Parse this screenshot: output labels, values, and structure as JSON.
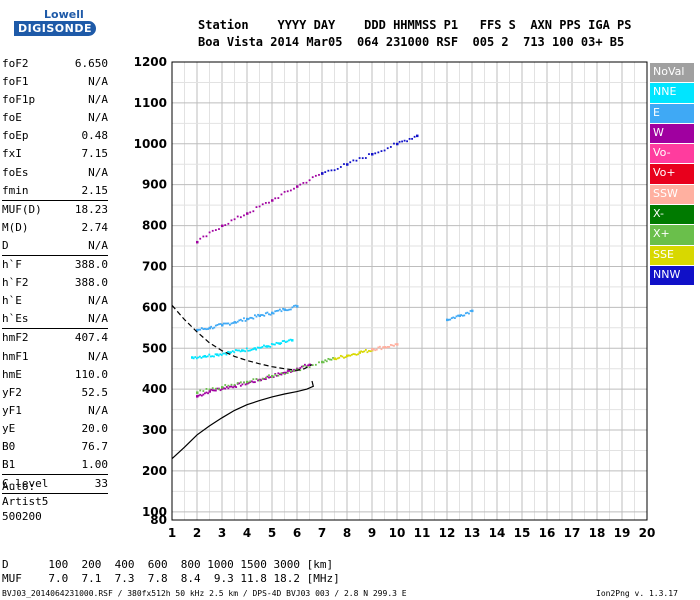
{
  "logo": {
    "top": "Lowell",
    "bottom": "DIGISONDE"
  },
  "header": {
    "labels": "Station    YYYY DAY    DDD HHMMSS P1   FFS S  AXN PPS IGA PS",
    "values": "Boa Vista 2014 Mar05  064 231000 RSF  005 2  713 100 03+ B5"
  },
  "params": {
    "group1": [
      {
        "name": "foF2",
        "value": "6.650"
      },
      {
        "name": "foF1",
        "value": "N/A"
      },
      {
        "name": "foF1p",
        "value": "N/A"
      },
      {
        "name": "foE",
        "value": "N/A"
      },
      {
        "name": "foEp",
        "value": "0.48"
      },
      {
        "name": "fxI",
        "value": "7.15"
      },
      {
        "name": "foEs",
        "value": "N/A"
      },
      {
        "name": "fmin",
        "value": "2.15"
      }
    ],
    "group2": [
      {
        "name": "MUF(D)",
        "value": "18.23"
      },
      {
        "name": "M(D)",
        "value": "2.74"
      },
      {
        "name": "D",
        "value": "N/A"
      }
    ],
    "group3": [
      {
        "name": "h`F",
        "value": "388.0"
      },
      {
        "name": "h`F2",
        "value": "388.0"
      },
      {
        "name": "h`E",
        "value": "N/A"
      },
      {
        "name": "h`Es",
        "value": "N/A"
      }
    ],
    "group4": [
      {
        "name": "hmF2",
        "value": "407.4"
      },
      {
        "name": "hmF1",
        "value": "N/A"
      },
      {
        "name": "hmE",
        "value": "110.0"
      },
      {
        "name": "yF2",
        "value": "52.5"
      },
      {
        "name": "yF1",
        "value": "N/A"
      },
      {
        "name": "yE",
        "value": "20.0"
      },
      {
        "name": "B0",
        "value": "76.7"
      },
      {
        "name": "B1",
        "value": "1.00"
      }
    ],
    "group5": [
      {
        "name": "C-level",
        "value": "33"
      }
    ]
  },
  "auto": [
    "Auto:",
    "Artist5",
    "500200"
  ],
  "legend": [
    {
      "label": "NoVal",
      "bg": "#a0a0a0",
      "fg": "#ffffff"
    },
    {
      "label": "NNE",
      "bg": "#00e5ff",
      "fg": "#ffffff"
    },
    {
      "label": "E",
      "bg": "#3fa9f5",
      "fg": "#ffffff"
    },
    {
      "label": "W",
      "bg": "#a000a0",
      "fg": "#ffffff"
    },
    {
      "label": "Vo-",
      "bg": "#ff3c9e",
      "fg": "#ffffff"
    },
    {
      "label": "Vo+",
      "bg": "#e8001c",
      "fg": "#ffffff"
    },
    {
      "label": "SSW",
      "bg": "#ffb0a0",
      "fg": "#ffffff"
    },
    {
      "label": "X-",
      "bg": "#007a00",
      "fg": "#ffffff"
    },
    {
      "label": "X+",
      "bg": "#6abf4b",
      "fg": "#ffffff"
    },
    {
      "label": "SSE",
      "bg": "#d8d800",
      "fg": "#ffffff"
    },
    {
      "label": "NNW",
      "bg": "#1010c8",
      "fg": "#ffffff"
    }
  ],
  "footer": {
    "row1": "D      100  200  400  600  800 1000 1500 3000 [km]",
    "row2": "MUF    7.0  7.1  7.3  7.8  8.4  9.3 11.8 18.2 [MHz]",
    "row3": "BVJ03_2014064231000.RSF / 380fx512h 50 kHz 2.5 km / DPS-4D BVJ03 003 / 2.8 N 299.3 E",
    "version": "Ion2Png v. 1.3.17"
  },
  "chart_data": {
    "type": "scatter",
    "x_ticks": [
      1,
      2,
      3,
      4,
      5,
      6,
      7,
      8,
      9,
      10,
      11,
      12,
      13,
      14,
      15,
      16,
      17,
      18,
      19,
      20
    ],
    "y_ticks": [
      80,
      100,
      200,
      300,
      400,
      500,
      600,
      700,
      800,
      900,
      1000,
      1100,
      1200
    ],
    "xlim": [
      1,
      20
    ],
    "ylim": [
      80,
      1200
    ],
    "grid": true,
    "legend_position": "right",
    "series": [
      {
        "name": "W",
        "color": "#a000a0",
        "x": [
          2.0,
          2.5,
          3.0,
          3.5,
          4.0,
          4.5,
          5.0,
          5.5,
          6.0,
          6.5
        ],
        "y": [
          383,
          395,
          402,
          408,
          415,
          423,
          432,
          440,
          450,
          460
        ]
      },
      {
        "name": "E",
        "color": "#3fa9f5",
        "x": [
          2.0,
          2.5,
          3.0,
          3.5,
          4.0,
          4.5,
          5.0,
          5.5,
          6.0
        ],
        "y": [
          545,
          550,
          557,
          564,
          572,
          580,
          587,
          595,
          603
        ]
      },
      {
        "name": "NNE",
        "color": "#00e5ff",
        "x": [
          1.8,
          2.3,
          2.8,
          3.3,
          3.8,
          4.3,
          4.8,
          5.3,
          5.8
        ],
        "y": [
          478,
          481,
          485,
          490,
          495,
          500,
          505,
          512,
          520
        ]
      },
      {
        "name": "X+",
        "color": "#6abf4b",
        "x": [
          2.0,
          3.0,
          4.0,
          5.0,
          6.0,
          7.0,
          7.5
        ],
        "y": [
          392,
          405,
          418,
          432,
          448,
          467,
          475
        ]
      },
      {
        "name": "SSE",
        "color": "#d8d800",
        "x": [
          7.5,
          8.0,
          8.5,
          9.0
        ],
        "y": [
          475,
          482,
          490,
          496
        ]
      },
      {
        "name": "SSW",
        "color": "#ffb0a0",
        "x": [
          9.0,
          9.5,
          10.0
        ],
        "y": [
          498,
          503,
          510
        ]
      },
      {
        "name": "W-2hop",
        "color": "#a000a0",
        "x": [
          2.0,
          3.0,
          4.0,
          5.0,
          6.0,
          7.0
        ],
        "y": [
          760,
          800,
          830,
          862,
          896,
          928
        ]
      },
      {
        "name": "NNW",
        "color": "#1010c8",
        "x": [
          7.0,
          8.0,
          9.0,
          10.0,
          10.8
        ],
        "y": [
          928,
          950,
          975,
          1000,
          1020
        ]
      },
      {
        "name": "E-far",
        "color": "#3fa9f5",
        "x": [
          12.0,
          12.5,
          13.0
        ],
        "y": [
          570,
          580,
          592
        ]
      }
    ],
    "profile_solid": {
      "x": [
        1,
        1.5,
        2,
        2.5,
        3,
        3.5,
        4,
        4.5,
        5,
        5.5,
        6,
        6.4,
        6.65,
        6.6
      ],
      "y": [
        230,
        258,
        288,
        310,
        330,
        348,
        362,
        372,
        381,
        388,
        394,
        400,
        407,
        420
      ]
    },
    "profile_dashed": {
      "x": [
        1,
        1.5,
        2,
        2.5,
        3,
        3.5,
        4,
        4.5,
        5,
        5.5,
        6,
        6.3,
        6.6
      ],
      "y": [
        605,
        570,
        540,
        513,
        494,
        480,
        470,
        462,
        455,
        450,
        446,
        450,
        460
      ]
    }
  }
}
